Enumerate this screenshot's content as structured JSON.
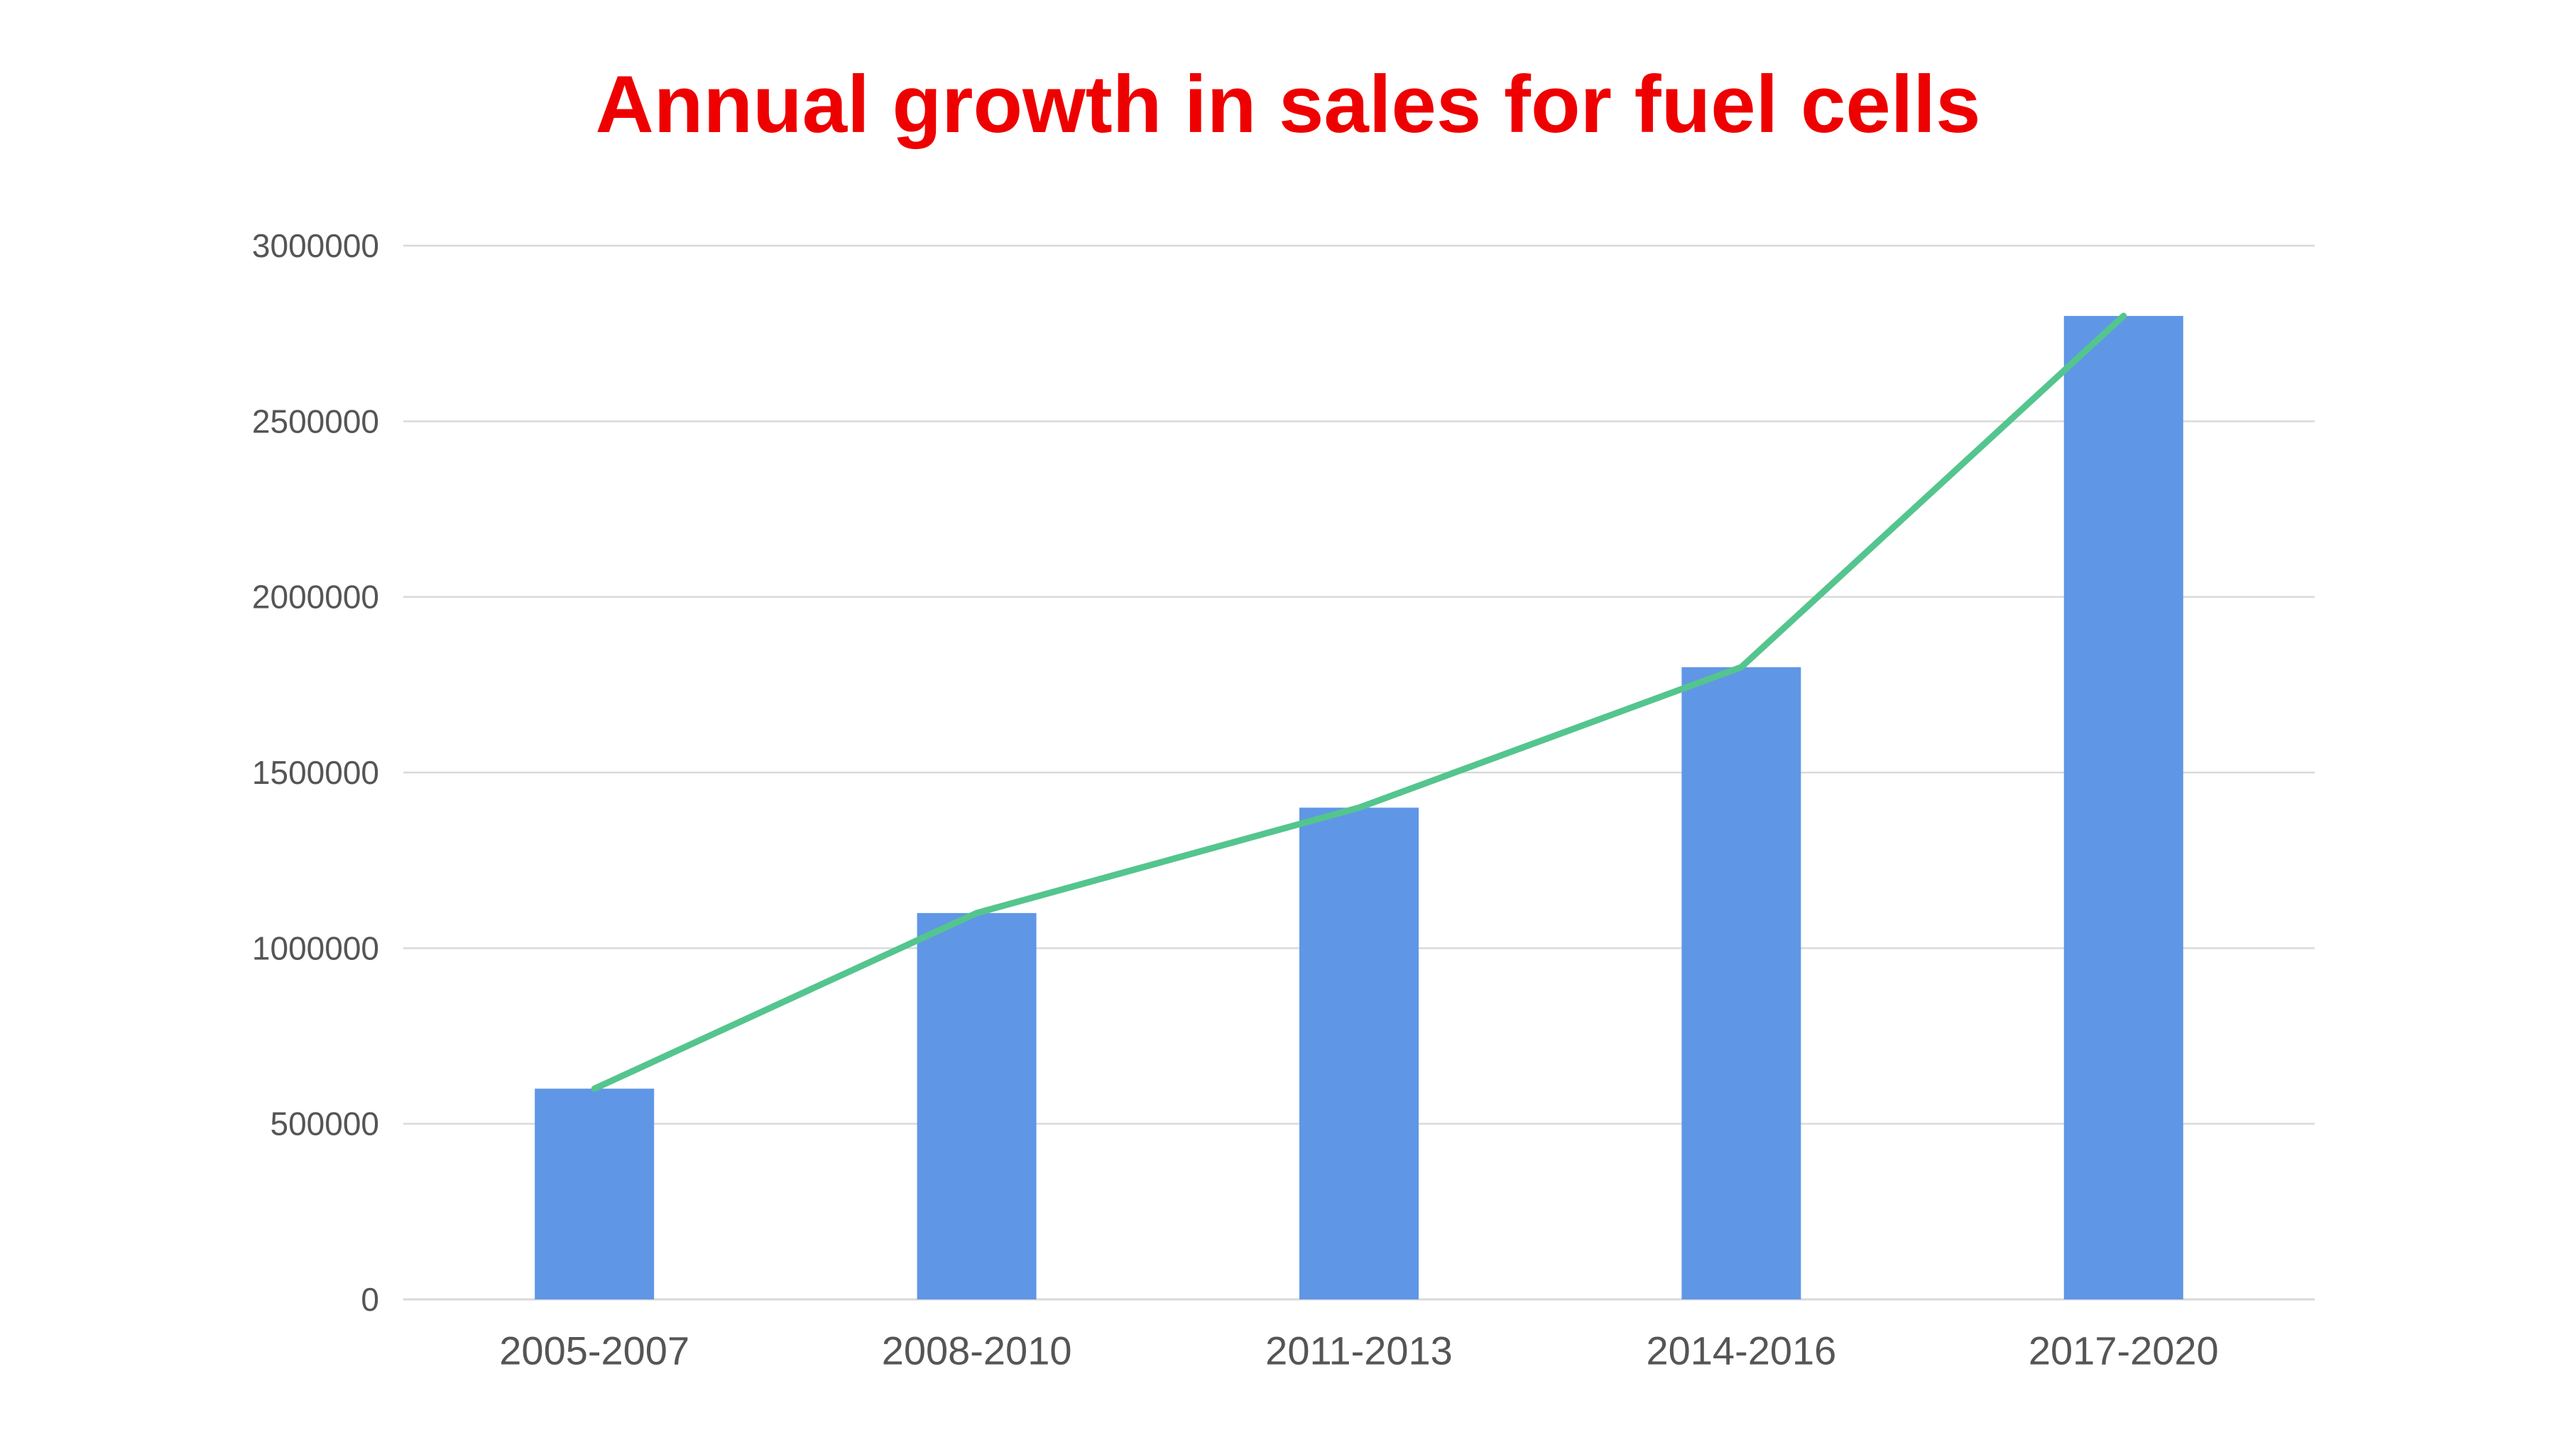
{
  "chart_data": {
    "type": "bar",
    "title": "Annual growth in sales for fuel cells",
    "xlabel": "",
    "ylabel": "",
    "categories": [
      "2005-2007",
      "2008-2010",
      "2011-2013",
      "2014-2016",
      "2017-2020"
    ],
    "series": [
      {
        "type": "bar",
        "values": [
          600000,
          1100000,
          1400000,
          1800000,
          2800000
        ]
      },
      {
        "type": "line",
        "values": [
          600000,
          1100000,
          1400000,
          1800000,
          2800000
        ]
      }
    ],
    "y_ticks": [
      "0",
      "500000",
      "1000000",
      "1500000",
      "2000000",
      "2500000",
      "3000000"
    ],
    "ylim": [
      0,
      3000000
    ],
    "grid": true,
    "legend": "none"
  },
  "colors": {
    "title": "#ee0000",
    "bar": "#6096e6",
    "line": "#54c58e",
    "grid": "#d9d9d9",
    "tick_text": "#555555"
  }
}
